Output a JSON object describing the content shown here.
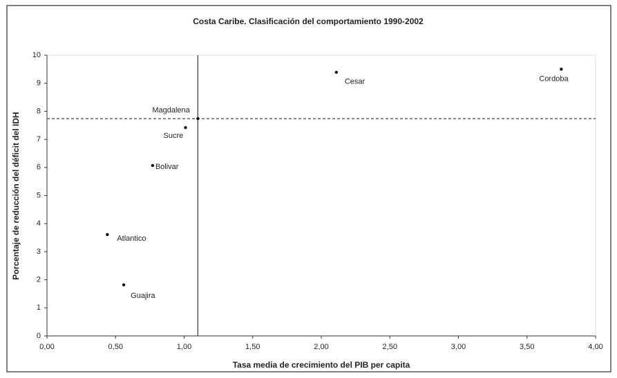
{
  "chart_data": {
    "type": "scatter",
    "title": "Costa Caribe. Clasificación del comportamiento 1990-2002",
    "x_label": "Tasa media de crecimiento del PIB per capita",
    "y_label": "Porcentaje de reducción del déficit del IDH",
    "point_labels": [
      "Cesar",
      "Cordoba",
      "Magdalena",
      "Sucre",
      "Bolivar",
      "Atlantico",
      "Guajira"
    ],
    "x": [
      2.11,
      3.75,
      1.1,
      1.01,
      0.77,
      0.44,
      0.56
    ],
    "values": [
      9.39,
      9.5,
      7.74,
      7.42,
      6.07,
      3.61,
      1.82
    ],
    "color": "#111111",
    "reference_x": 1.1,
    "reference_y": 7.74,
    "xlim": [
      0,
      4
    ],
    "xticks": [
      {
        "value": 0,
        "label": "0,00"
      },
      {
        "value": 0.5,
        "label": "0,50"
      },
      {
        "value": 1,
        "label": "1,00"
      },
      {
        "value": 1.5,
        "label": "1,50"
      },
      {
        "value": 2,
        "label": "2,00"
      },
      {
        "value": 2.5,
        "label": "2,50"
      },
      {
        "value": 3,
        "label": "3,00"
      },
      {
        "value": 3.5,
        "label": "3,50"
      },
      {
        "value": 4,
        "label": "4,00"
      }
    ],
    "ylim": [
      0,
      10
    ],
    "yticks": [
      0,
      1,
      2,
      3,
      4,
      5,
      6,
      7,
      8,
      9,
      10
    ]
  }
}
